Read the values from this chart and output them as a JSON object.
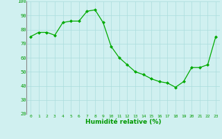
{
  "x": [
    0,
    1,
    2,
    3,
    4,
    5,
    6,
    7,
    8,
    9,
    10,
    11,
    12,
    13,
    14,
    15,
    16,
    17,
    18,
    19,
    20,
    21,
    22,
    23
  ],
  "y": [
    75,
    78,
    78,
    76,
    85,
    86,
    86,
    93,
    94,
    85,
    68,
    60,
    55,
    50,
    48,
    45,
    43,
    42,
    39,
    43,
    53,
    53,
    55,
    75
  ],
  "line_color": "#00aa00",
  "marker_color": "#00aa00",
  "bg_color": "#d0f0f0",
  "grid_color": "#aadddd",
  "xlabel": "Humidité relative (%)",
  "xlabel_color": "#009900",
  "tick_color": "#009900",
  "spine_color": "#888888",
  "ylim": [
    20,
    100
  ],
  "xlim": [
    -0.5,
    23.5
  ],
  "yticks": [
    20,
    30,
    40,
    50,
    60,
    70,
    80,
    90,
    100
  ],
  "xticks": [
    0,
    1,
    2,
    3,
    4,
    5,
    6,
    7,
    8,
    9,
    10,
    11,
    12,
    13,
    14,
    15,
    16,
    17,
    18,
    19,
    20,
    21,
    22,
    23
  ]
}
